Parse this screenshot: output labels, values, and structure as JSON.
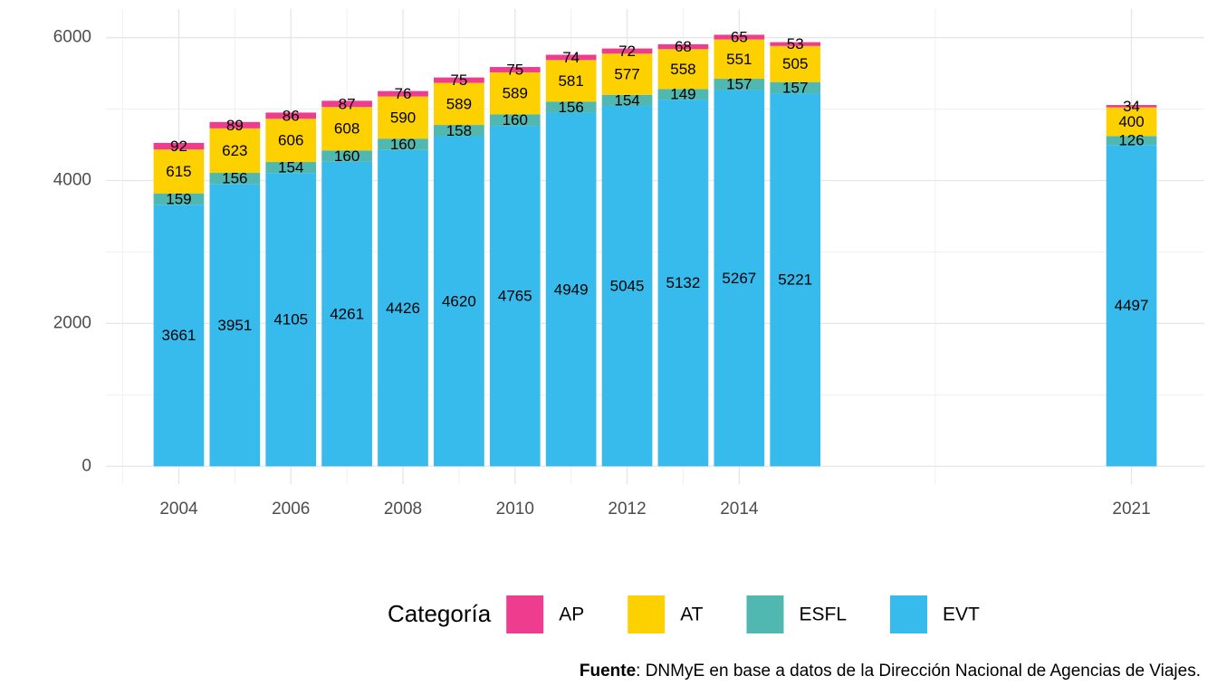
{
  "chart_data": {
    "type": "bar",
    "stacked": true,
    "x": [
      2004,
      2005,
      2006,
      2007,
      2008,
      2009,
      2010,
      2011,
      2012,
      2013,
      2014,
      2015,
      2021
    ],
    "series": [
      {
        "name": "EVT",
        "color": "#37bbed",
        "values": [
          3661,
          3951,
          4105,
          4261,
          4426,
          4620,
          4765,
          4949,
          5045,
          5132,
          5267,
          5221,
          4497
        ]
      },
      {
        "name": "ESFL",
        "color": "#50b8b1",
        "values": [
          159,
          156,
          154,
          160,
          160,
          158,
          160,
          156,
          154,
          149,
          157,
          157,
          126
        ]
      },
      {
        "name": "AT",
        "color": "#fdd000",
        "values": [
          615,
          623,
          606,
          608,
          590,
          589,
          589,
          581,
          577,
          558,
          551,
          505,
          400
        ]
      },
      {
        "name": "AP",
        "color": "#ee3d8f",
        "values": [
          92,
          89,
          86,
          87,
          76,
          75,
          75,
          74,
          72,
          68,
          65,
          53,
          34
        ]
      }
    ],
    "xlim": [
      2002.7,
      2022.3
    ],
    "xticks": [
      2004,
      2006,
      2008,
      2010,
      2012,
      2014,
      2021
    ],
    "ylim": [
      -250,
      6400
    ],
    "yticks": [
      0,
      2000,
      4000,
      6000
    ],
    "grid": true,
    "legend_title": "Categoría",
    "legend_position": "bottom",
    "caption_label": "Fuente",
    "caption": ": DNMyE en base a datos de la Dirección Nacional de Agencias de Viajes."
  }
}
